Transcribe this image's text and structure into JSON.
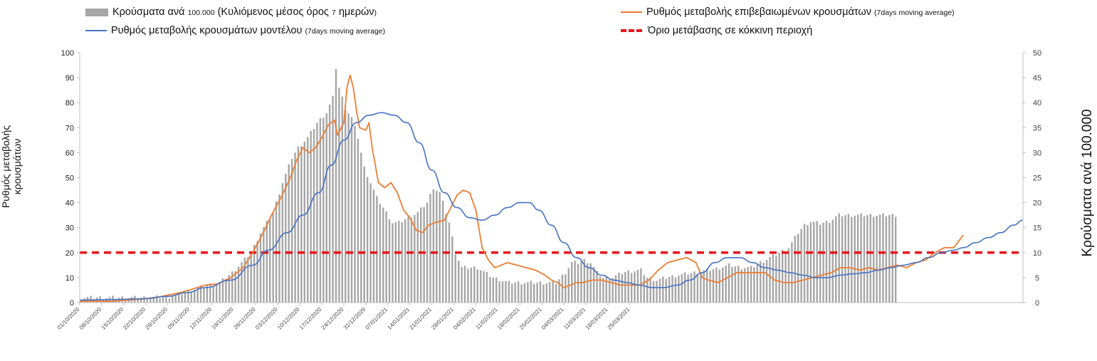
{
  "legend": {
    "bars_main": "Κρούσματα ανά",
    "bars_small1": "100.000",
    "bars_main2": "(Κυλιόμενος μέσος όρος",
    "bars_small2": "7",
    "bars_main3": "ημερών",
    "bars_small3": ")",
    "orange_main": "Ρυθμός μεταβολής επιβεβαιωμένων κρουσμάτων",
    "orange_small": "(7days moving average)",
    "blue_main": "Ρυθμός μεταβολής κρουσμάτων μοντέλου",
    "blue_small": "(7days moving average)",
    "threshold_main": "Όριο μετάβασης σε κόκκινη περιοχή"
  },
  "axes": {
    "left_label": "Ρυθμός μεταβολής κρουσμάτων",
    "right_label": "Κρούσματα ανά 100.000"
  },
  "colors": {
    "bars": "#a6a6a6",
    "orange": "#ed7d31",
    "blue": "#4472c4",
    "threshold": "#e8141a"
  },
  "chart_data": {
    "type": "bar+line",
    "left_axis": {
      "label": "Ρυθμός μεταβολής κρουσμάτων",
      "ylim": [
        0,
        100
      ],
      "ticks": [
        0,
        10,
        20,
        30,
        40,
        50,
        60,
        70,
        80,
        90,
        100
      ]
    },
    "right_axis": {
      "label": "Κρούσματα ανά 100.000",
      "ylim": [
        0,
        50
      ],
      "ticks": [
        0,
        5,
        10,
        15,
        20,
        25,
        30,
        35,
        40,
        45,
        50
      ]
    },
    "x_tick_labels": [
      "01/10/2020",
      "08/10/2020",
      "15/10/2020",
      "22/10/2020",
      "29/10/2020",
      "05/11/2020",
      "12/11/2020",
      "19/11/2020",
      "26/11/2020",
      "03/12/2020",
      "10/12/2020",
      "17/12/2020",
      "24/12/2020",
      "31/12/2020",
      "07/01/2021",
      "14/01/2021",
      "21/01/2021",
      "28/01/2021",
      "04/02/2021",
      "11/02/2021",
      "18/02/2021",
      "25/02/2021",
      "04/03/2021",
      "11/03/2021",
      "18/03/2021",
      "25/03/2021"
    ],
    "bar_anchors_day_value": [
      [
        0,
        1
      ],
      [
        10,
        1
      ],
      [
        20,
        1
      ],
      [
        28,
        1.2
      ],
      [
        34,
        2.2
      ],
      [
        40,
        3.5
      ],
      [
        44,
        4
      ],
      [
        48,
        6
      ],
      [
        54,
        10
      ],
      [
        57,
        14
      ],
      [
        61,
        18
      ],
      [
        64,
        24
      ],
      [
        67,
        29
      ],
      [
        69,
        31
      ],
      [
        72,
        33
      ],
      [
        75,
        36
      ],
      [
        78,
        38
      ],
      [
        80,
        41
      ],
      [
        81,
        47
      ],
      [
        82,
        43
      ],
      [
        84,
        39
      ],
      [
        86,
        37
      ],
      [
        88,
        33
      ],
      [
        90,
        27
      ],
      [
        92,
        24
      ],
      [
        94,
        21
      ],
      [
        97,
        18
      ],
      [
        99,
        16
      ],
      [
        101,
        16
      ],
      [
        104,
        17
      ],
      [
        107,
        18
      ],
      [
        110,
        20
      ],
      [
        112,
        23
      ],
      [
        114,
        22
      ],
      [
        117,
        16
      ],
      [
        119,
        10
      ],
      [
        121,
        7
      ],
      [
        123,
        7
      ],
      [
        126,
        7
      ],
      [
        131,
        5
      ],
      [
        136,
        4
      ],
      [
        140,
        4
      ],
      [
        142,
        4
      ],
      [
        146,
        4
      ],
      [
        151,
        4
      ],
      [
        154,
        6
      ],
      [
        156,
        8
      ],
      [
        158,
        8
      ],
      [
        160,
        8.5
      ],
      [
        162,
        8
      ],
      [
        164,
        6
      ],
      [
        166,
        5
      ],
      [
        169,
        5
      ],
      [
        172,
        6
      ],
      [
        175,
        6.3
      ],
      [
        178,
        6.5
      ],
      [
        180,
        5
      ],
      [
        183,
        4.5
      ],
      [
        186,
        5
      ],
      [
        190,
        5.5
      ],
      [
        195,
        6
      ],
      [
        199,
        6.5
      ],
      [
        202,
        6.8
      ],
      [
        206,
        7.5
      ],
      [
        210,
        7
      ],
      [
        213,
        7
      ],
      [
        216,
        8
      ],
      [
        219,
        9
      ],
      [
        222,
        10
      ],
      [
        225,
        11
      ],
      [
        228,
        14
      ],
      [
        230,
        15.5
      ],
      [
        232,
        16.2
      ],
      [
        235,
        15.8
      ],
      [
        238,
        16.3
      ],
      [
        241,
        17.5
      ]
    ],
    "orange_anchors_day_value": [
      [
        0,
        0.5
      ],
      [
        10,
        0.5
      ],
      [
        15,
        1
      ],
      [
        20,
        1.5
      ],
      [
        24,
        2
      ],
      [
        28,
        3
      ],
      [
        32,
        4
      ],
      [
        36,
        5.5
      ],
      [
        40,
        7
      ],
      [
        44,
        7.5
      ],
      [
        48,
        10
      ],
      [
        52,
        14
      ],
      [
        55,
        20
      ],
      [
        58,
        27
      ],
      [
        61,
        35
      ],
      [
        64,
        42
      ],
      [
        67,
        50
      ],
      [
        69,
        57
      ],
      [
        71,
        62
      ],
      [
        73,
        60
      ],
      [
        75,
        62
      ],
      [
        77,
        66
      ],
      [
        79,
        71
      ],
      [
        81,
        73
      ],
      [
        82,
        67
      ],
      [
        84,
        72
      ],
      [
        85,
        86
      ],
      [
        86,
        91
      ],
      [
        87,
        86
      ],
      [
        88,
        77
      ],
      [
        89,
        70
      ],
      [
        91,
        69
      ],
      [
        92,
        72
      ],
      [
        93,
        62
      ],
      [
        94,
        55
      ],
      [
        95,
        48
      ],
      [
        97,
        46
      ],
      [
        99,
        48
      ],
      [
        101,
        44
      ],
      [
        103,
        37
      ],
      [
        105,
        34
      ],
      [
        107,
        29
      ],
      [
        109,
        28
      ],
      [
        111,
        31
      ],
      [
        113,
        32
      ],
      [
        116,
        33
      ],
      [
        118,
        38
      ],
      [
        120,
        43
      ],
      [
        122,
        45
      ],
      [
        124,
        44
      ],
      [
        126,
        37
      ],
      [
        128,
        22
      ],
      [
        130,
        17
      ],
      [
        132,
        14
      ],
      [
        134,
        15
      ],
      [
        136,
        16
      ],
      [
        139,
        15
      ],
      [
        142,
        14
      ],
      [
        145,
        13
      ],
      [
        148,
        11
      ],
      [
        150,
        9
      ],
      [
        152,
        8
      ],
      [
        154,
        6
      ],
      [
        156,
        7
      ],
      [
        158,
        8
      ],
      [
        160,
        8
      ],
      [
        163,
        9
      ],
      [
        166,
        9
      ],
      [
        169,
        8
      ],
      [
        172,
        7
      ],
      [
        175,
        7
      ],
      [
        178,
        7
      ],
      [
        181,
        9
      ],
      [
        184,
        13
      ],
      [
        187,
        16
      ],
      [
        190,
        17
      ],
      [
        193,
        18
      ],
      [
        196,
        16
      ],
      [
        198,
        10
      ],
      [
        200,
        9
      ],
      [
        203,
        8
      ],
      [
        206,
        10
      ],
      [
        209,
        12
      ],
      [
        212,
        12
      ],
      [
        215,
        12
      ],
      [
        218,
        12
      ],
      [
        221,
        9
      ],
      [
        224,
        8
      ],
      [
        227,
        8
      ],
      [
        230,
        9
      ],
      [
        233,
        10
      ],
      [
        236,
        11
      ],
      [
        239,
        12
      ],
      [
        242,
        14
      ],
      [
        245,
        14
      ],
      [
        248,
        13
      ],
      [
        251,
        14
      ],
      [
        254,
        13
      ],
      [
        257,
        14
      ],
      [
        260,
        15
      ],
      [
        263,
        14
      ],
      [
        266,
        16
      ],
      [
        269,
        17
      ],
      [
        272,
        20
      ],
      [
        275,
        22
      ],
      [
        278,
        22
      ],
      [
        281,
        27
      ]
    ],
    "blue_anchors_day_value": [
      [
        0,
        1
      ],
      [
        10,
        1.2
      ],
      [
        20,
        1.5
      ],
      [
        28,
        2.5
      ],
      [
        34,
        4
      ],
      [
        40,
        6
      ],
      [
        48,
        9
      ],
      [
        55,
        15
      ],
      [
        60,
        21
      ],
      [
        66,
        28
      ],
      [
        71,
        35
      ],
      [
        76,
        44
      ],
      [
        80,
        55
      ],
      [
        84,
        65
      ],
      [
        88,
        72
      ],
      [
        92,
        75
      ],
      [
        96,
        76
      ],
      [
        100,
        75
      ],
      [
        104,
        72
      ],
      [
        108,
        64
      ],
      [
        112,
        53
      ],
      [
        116,
        44
      ],
      [
        120,
        38
      ],
      [
        124,
        34
      ],
      [
        128,
        33
      ],
      [
        132,
        35
      ],
      [
        136,
        38
      ],
      [
        140,
        40
      ],
      [
        143,
        40
      ],
      [
        146,
        37
      ],
      [
        150,
        31
      ],
      [
        154,
        24
      ],
      [
        158,
        18
      ],
      [
        162,
        14
      ],
      [
        166,
        11
      ],
      [
        170,
        9
      ],
      [
        174,
        8
      ],
      [
        178,
        7
      ],
      [
        182,
        6
      ],
      [
        186,
        6
      ],
      [
        190,
        7
      ],
      [
        194,
        9
      ],
      [
        198,
        12
      ],
      [
        202,
        16
      ],
      [
        206,
        18
      ],
      [
        210,
        18
      ],
      [
        214,
        16
      ],
      [
        218,
        14
      ],
      [
        222,
        13
      ],
      [
        226,
        12
      ],
      [
        230,
        11
      ],
      [
        234,
        10
      ],
      [
        238,
        10
      ],
      [
        242,
        11
      ],
      [
        246,
        11.5
      ],
      [
        250,
        12
      ],
      [
        254,
        13
      ],
      [
        258,
        14
      ],
      [
        262,
        15
      ],
      [
        266,
        16
      ],
      [
        270,
        18
      ],
      [
        274,
        20
      ],
      [
        278,
        21
      ],
      [
        281,
        22
      ],
      [
        285,
        24
      ],
      [
        289,
        26
      ],
      [
        293,
        28
      ],
      [
        297,
        31
      ],
      [
        300,
        33
      ]
    ],
    "threshold": 20,
    "num_bars": 260
  }
}
